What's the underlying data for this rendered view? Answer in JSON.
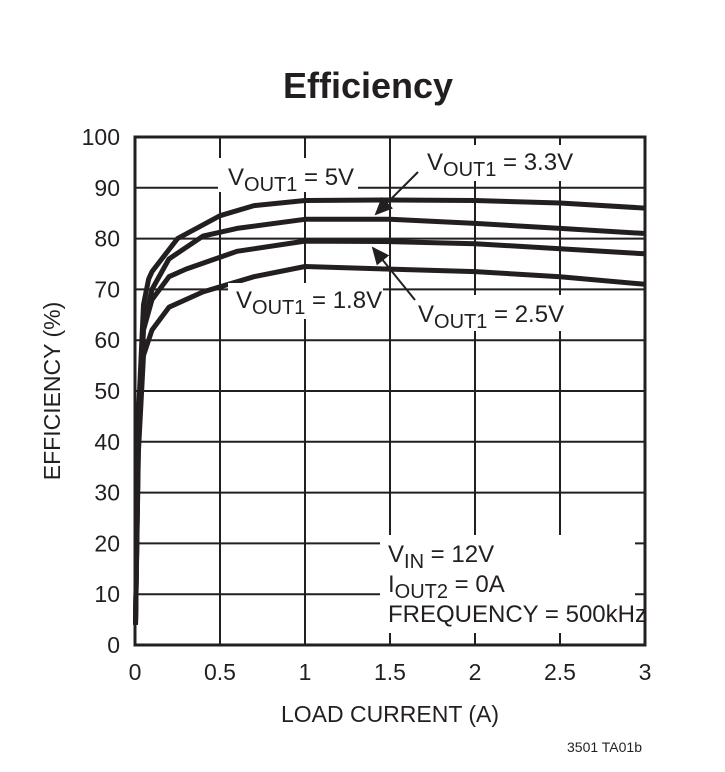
{
  "chart_data": {
    "type": "line",
    "title": "Efficiency",
    "xlabel": "LOAD CURRENT (A)",
    "ylabel": "EFFICIENCY (%)",
    "xlim": [
      0,
      3
    ],
    "ylim": [
      0,
      100
    ],
    "xticks": [
      "0",
      "0.5",
      "1",
      "1.5",
      "2",
      "2.5",
      "3"
    ],
    "yticks": [
      "0",
      "10",
      "20",
      "30",
      "40",
      "50",
      "60",
      "70",
      "80",
      "90",
      "100"
    ],
    "grid": true,
    "line_color": "#231f20",
    "series": [
      {
        "name": "VOUT1 = 5V",
        "label_main": "V",
        "label_sub": "OUT1",
        "label_rest": " = 5V",
        "x": [
          0.003,
          0.02,
          0.05,
          0.08,
          0.1,
          0.25,
          0.5,
          0.7,
          1,
          1.5,
          2,
          2.5,
          3
        ],
        "y": [
          4,
          45,
          67,
          72,
          73.5,
          80,
          84.5,
          86.5,
          87.5,
          87.6,
          87.5,
          87,
          86
        ]
      },
      {
        "name": "VOUT1 = 3.3V",
        "label_main": "V",
        "label_sub": "OUT1",
        "label_rest": " = 3.3V",
        "x": [
          0.003,
          0.02,
          0.05,
          0.1,
          0.2,
          0.4,
          0.6,
          1,
          1.5,
          2,
          2.5,
          3
        ],
        "y": [
          4,
          42,
          63,
          70,
          76,
          80.5,
          82,
          83.8,
          83.8,
          83,
          82,
          81
        ]
      },
      {
        "name": "VOUT1 = 2.5V",
        "label_main": "V",
        "label_sub": "OUT1",
        "label_rest": " = 2.5V",
        "x": [
          0.003,
          0.02,
          0.05,
          0.1,
          0.2,
          0.3,
          0.6,
          1,
          1.5,
          2,
          2.5,
          3
        ],
        "y": [
          4,
          40,
          62,
          68,
          72.5,
          74,
          77.5,
          79.5,
          79.4,
          79,
          78,
          77
        ]
      },
      {
        "name": "VOUT1 = 1.8V",
        "label_main": "V",
        "label_sub": "OUT1",
        "label_rest": " = 1.8V",
        "x": [
          0.003,
          0.02,
          0.05,
          0.1,
          0.2,
          0.4,
          0.7,
          1,
          1.5,
          2,
          2.5,
          3
        ],
        "y": [
          4,
          38,
          57,
          62,
          66.5,
          69.5,
          72.5,
          74.5,
          74,
          73.5,
          72.5,
          71
        ]
      }
    ],
    "annotations": [
      {
        "main": "V",
        "sub": "IN",
        "rest": " = 12V"
      },
      {
        "main": "I",
        "sub": "OUT2",
        "rest": " = 0A"
      },
      {
        "main": "FREQUENCY = 500kHz",
        "sub": "",
        "rest": ""
      }
    ],
    "footnote": "3501 TA01b"
  }
}
